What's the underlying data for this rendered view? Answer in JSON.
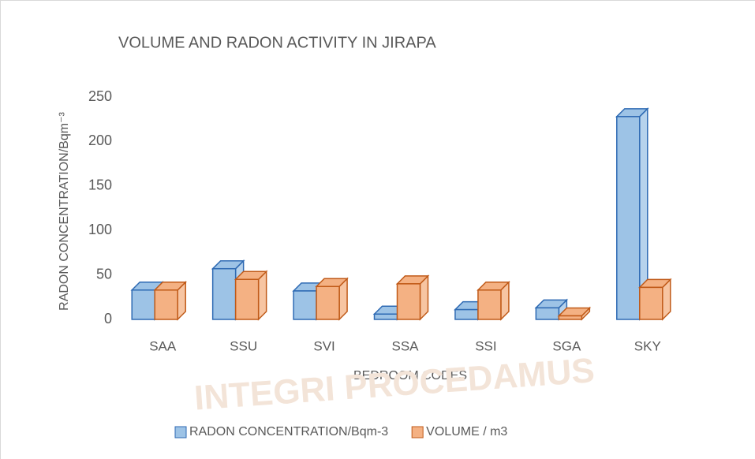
{
  "chart_data": {
    "type": "bar3d",
    "title": "VOLUME AND RADON ACTIVITY IN JIRAPA",
    "x_label": "BEDROOM CODES",
    "y_label": "RADON CONCENTRATION/Bqm⁻³",
    "watermark": "INTEGRI PROCEDAMUS",
    "categories": [
      "SAA",
      "SSU",
      "SVI",
      "SSA",
      "SSI",
      "SGA",
      "SKY"
    ],
    "series": [
      {
        "name": "RADON CONCENTRATION/Bqm-3",
        "color": "#9dc3e6",
        "edge": "#2e6ab3",
        "values": [
          33,
          57,
          32,
          6,
          11,
          13,
          228
        ]
      },
      {
        "name": "VOLUME / m3",
        "color": "#f4b183",
        "edge": "#c05a18",
        "values": [
          33,
          45,
          37,
          40,
          33,
          4,
          36
        ]
      }
    ],
    "ylim": [
      0,
      250
    ],
    "yticks": [
      0,
      50,
      100,
      150,
      200,
      250
    ],
    "legend": "bottom",
    "grid": false
  }
}
